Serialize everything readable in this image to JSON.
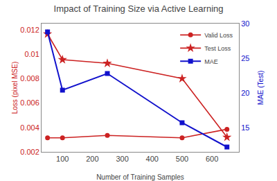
{
  "chart_data": {
    "type": "line",
    "title": "Impact of Training Size via Active Learning",
    "xlabel": "Number of Training Samples",
    "ylabel": "Loss (pixel MSE)",
    "y2label": "MAE (Test)",
    "x": [
      50,
      100,
      250,
      500,
      650
    ],
    "series": [
      {
        "name": "Valid Loss",
        "color": "#cc2222",
        "marker": "circle",
        "values": [
          0.00315,
          0.00315,
          0.00335,
          0.00315,
          0.00385
        ]
      },
      {
        "name": "Test Loss",
        "color": "#cc2222",
        "marker": "star",
        "values": [
          0.01165,
          0.00955,
          0.00925,
          0.008,
          0.0032
        ]
      },
      {
        "name": "MAE",
        "color": "#1111cc",
        "marker": "square",
        "axis": "y2",
        "values": [
          28.8,
          20.4,
          22.8,
          15.7,
          12.2
        ]
      }
    ],
    "xlim": [
      30,
      690
    ],
    "xticks": [
      100,
      200,
      300,
      400,
      500,
      600
    ],
    "ylim": [
      0.002,
      0.0125
    ],
    "yticks": [
      0.002,
      0.004,
      0.006,
      0.008,
      0.01,
      0.012
    ],
    "y2lim": [
      11.5,
      30.0
    ],
    "y2ticks": [
      15,
      20,
      25,
      30
    ],
    "grid": false,
    "legend": "upper right"
  }
}
